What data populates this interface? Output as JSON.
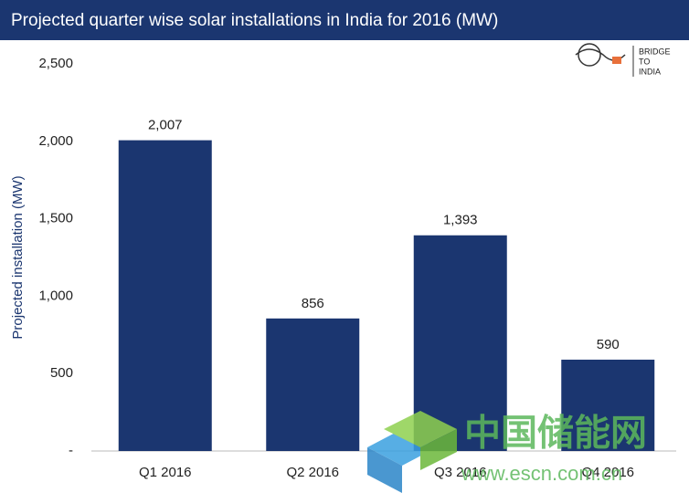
{
  "chart_data": {
    "type": "bar",
    "title": "Projected quarter wise solar installations in India for 2016 (MW)",
    "y_label": "Projected installation (MW)",
    "categories": [
      "Q1 2016",
      "Q2 2016",
      "Q3 2016",
      "Q4 2016"
    ],
    "values": [
      2007,
      856,
      1393,
      590
    ],
    "value_labels": [
      "2,007",
      "856",
      "1,393",
      "590"
    ],
    "color": "#1b3670",
    "ylim": [
      0,
      2500
    ],
    "yticks": [
      {
        "value": 0,
        "label": "-"
      },
      500,
      {
        "value": 1000,
        "label": "1,000"
      },
      {
        "value": 1500,
        "label": "1,500"
      },
      {
        "value": 2000,
        "label": "2,000"
      },
      {
        "value": 2500,
        "label": "2,500"
      }
    ],
    "grid": false
  },
  "logo": {
    "line1": "BRIDGE",
    "line2": "TO",
    "line3": "INDIA"
  },
  "watermark": {
    "name": "中国储能网",
    "url": "www.escn.com.cn"
  }
}
